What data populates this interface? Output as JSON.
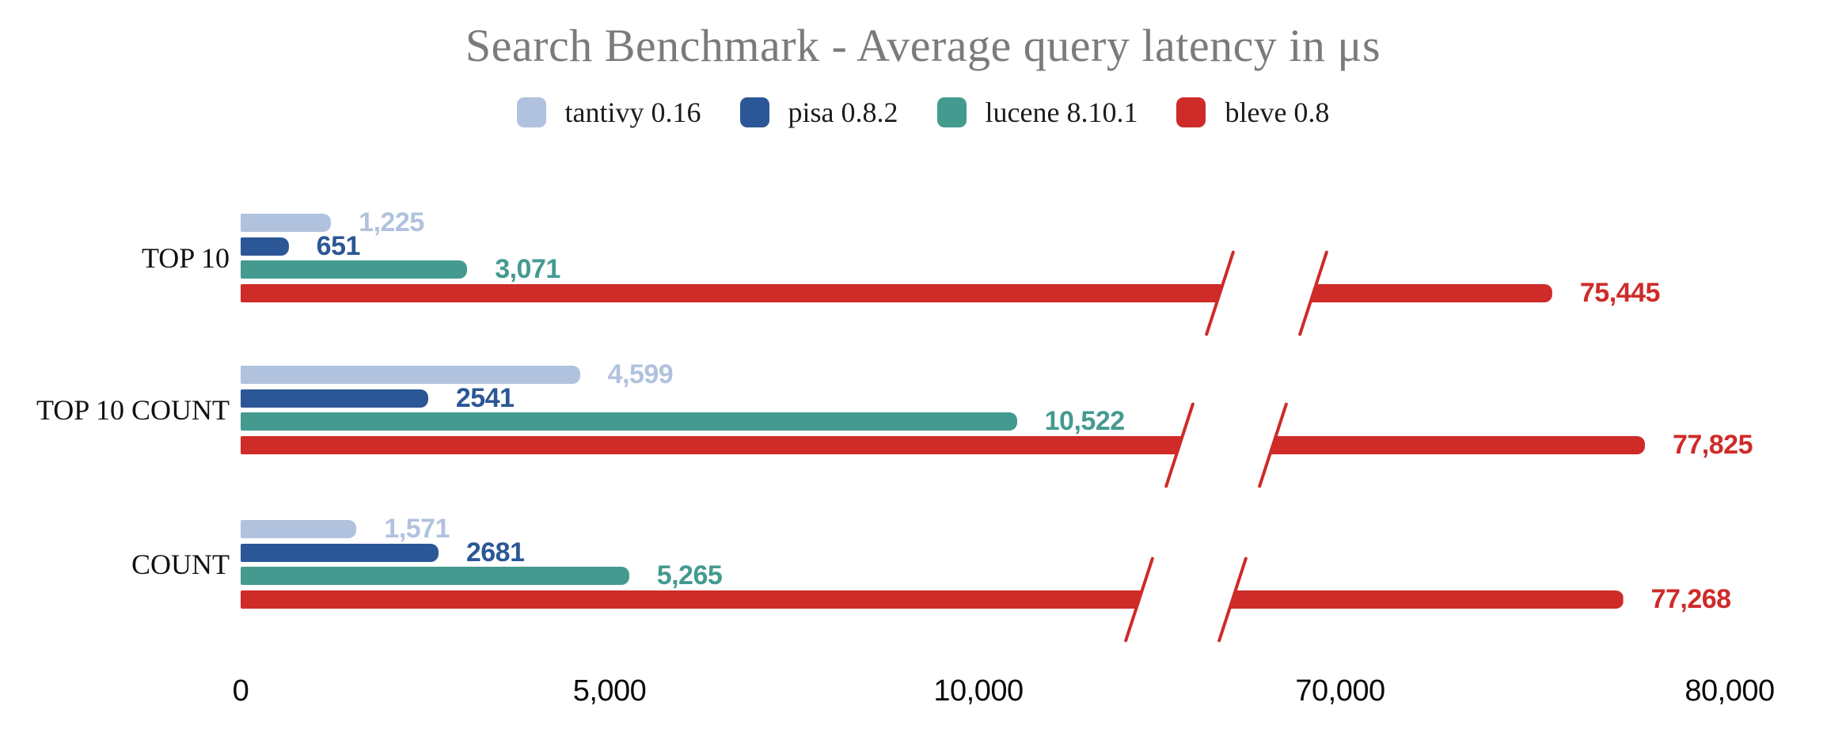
{
  "title": "Search Benchmark - Average query latency in μs",
  "legend": [
    {
      "name": "tantivy 0.16",
      "color": "#b1c2de"
    },
    {
      "name": "pisa 0.8.2",
      "color": "#2b5796"
    },
    {
      "name": "lucene 8.10.1",
      "color": "#459a90"
    },
    {
      "name": "bleve 0.8",
      "color": "#ce2b29"
    }
  ],
  "chart_data": {
    "type": "bar",
    "orientation": "horizontal",
    "title": "Search Benchmark - Average query latency in μs",
    "xlabel": "",
    "ylabel": "",
    "unit": "μs",
    "grid": false,
    "legend_position": "top-center",
    "categories": [
      "TOP 10",
      "TOP 10 COUNT",
      "COUNT"
    ],
    "series": [
      {
        "name": "tantivy 0.16",
        "color": "#b1c2de",
        "values": [
          1225,
          4599,
          1571
        ],
        "labels": [
          "1,225",
          "4,599",
          "1,571"
        ]
      },
      {
        "name": "pisa 0.8.2",
        "color": "#2b5796",
        "values": [
          651,
          2541,
          2681
        ],
        "labels": [
          "651",
          "2541",
          "2681"
        ]
      },
      {
        "name": "lucene 8.10.1",
        "color": "#459a90",
        "values": [
          3071,
          10522,
          5265
        ],
        "labels": [
          "3,071",
          "10,522",
          "5,265"
        ]
      },
      {
        "name": "bleve 0.8",
        "color": "#ce2b29",
        "values": [
          75445,
          77825,
          77268
        ],
        "labels": [
          "75,445",
          "77,825",
          "77,268"
        ]
      }
    ],
    "x_axis": {
      "ticks": [
        {
          "label": "0",
          "value": 0
        },
        {
          "label": "5,000",
          "value": 5000
        },
        {
          "label": "10,000",
          "value": 10000
        },
        {
          "label": "70,000",
          "value": 70000
        },
        {
          "label": "80,000",
          "value": 80000
        }
      ],
      "axis_break": {
        "enabled": true,
        "between": [
          12000,
          70000
        ]
      }
    }
  }
}
